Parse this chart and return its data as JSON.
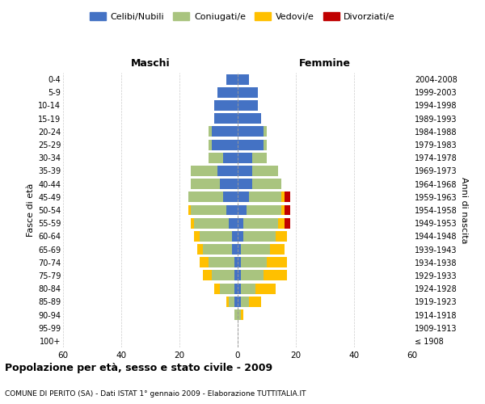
{
  "age_groups": [
    "100+",
    "95-99",
    "90-94",
    "85-89",
    "80-84",
    "75-79",
    "70-74",
    "65-69",
    "60-64",
    "55-59",
    "50-54",
    "45-49",
    "40-44",
    "35-39",
    "30-34",
    "25-29",
    "20-24",
    "15-19",
    "10-14",
    "5-9",
    "0-4"
  ],
  "year_labels": [
    "≤ 1908",
    "1909-1913",
    "1914-1918",
    "1919-1923",
    "1924-1928",
    "1929-1933",
    "1934-1938",
    "1939-1943",
    "1944-1948",
    "1949-1953",
    "1954-1958",
    "1959-1963",
    "1964-1968",
    "1969-1973",
    "1974-1978",
    "1979-1983",
    "1984-1988",
    "1989-1993",
    "1994-1998",
    "1999-2003",
    "2004-2008"
  ],
  "male_celibi": [
    0,
    0,
    0,
    1,
    1,
    1,
    1,
    2,
    2,
    3,
    4,
    5,
    6,
    7,
    5,
    9,
    9,
    8,
    8,
    7,
    4
  ],
  "male_coniugati": [
    0,
    0,
    1,
    2,
    5,
    8,
    9,
    10,
    11,
    12,
    12,
    12,
    10,
    9,
    5,
    1,
    1,
    0,
    0,
    0,
    0
  ],
  "male_vedovi": [
    0,
    0,
    0,
    1,
    2,
    3,
    3,
    2,
    2,
    1,
    1,
    0,
    0,
    0,
    0,
    0,
    0,
    0,
    0,
    0,
    0
  ],
  "male_divorziati": [
    0,
    0,
    0,
    0,
    0,
    0,
    0,
    0,
    0,
    0,
    0,
    0,
    0,
    0,
    0,
    0,
    0,
    0,
    0,
    0,
    0
  ],
  "female_nubili": [
    0,
    0,
    0,
    1,
    1,
    1,
    1,
    1,
    2,
    2,
    3,
    4,
    5,
    5,
    5,
    9,
    9,
    8,
    7,
    7,
    4
  ],
  "female_coniugate": [
    0,
    0,
    1,
    3,
    5,
    8,
    9,
    10,
    11,
    12,
    12,
    11,
    10,
    9,
    5,
    1,
    1,
    0,
    0,
    0,
    0
  ],
  "female_vedove": [
    0,
    0,
    1,
    4,
    7,
    8,
    7,
    5,
    4,
    2,
    1,
    1,
    0,
    0,
    0,
    0,
    0,
    0,
    0,
    0,
    0
  ],
  "female_divorziate": [
    0,
    0,
    0,
    0,
    0,
    0,
    0,
    0,
    0,
    2,
    2,
    2,
    0,
    0,
    0,
    0,
    0,
    0,
    0,
    0,
    0
  ],
  "colors": {
    "celibi_nubili": "#4472c4",
    "coniugati": "#a9c47f",
    "vedovi": "#ffc000",
    "divorziati": "#c00000"
  },
  "xlim": 60,
  "title": "Popolazione per età, sesso e stato civile - 2009",
  "subtitle": "COMUNE DI PERITO (SA) - Dati ISTAT 1° gennaio 2009 - Elaborazione TUTTITALIA.IT",
  "ylabel_left": "Fasce di età",
  "ylabel_right": "Anni di nascita",
  "header_left": "Maschi",
  "header_right": "Femmine",
  "legend_labels": [
    "Celibi/Nubili",
    "Coniugati/e",
    "Vedovi/e",
    "Divorziati/e"
  ]
}
